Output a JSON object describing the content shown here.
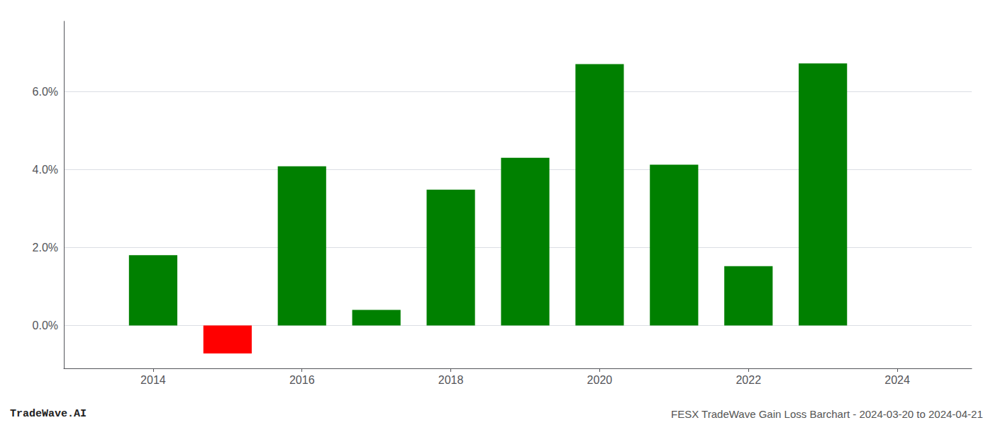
{
  "chart_data": {
    "type": "bar",
    "x": [
      2014,
      2015,
      2016,
      2017,
      2018,
      2019,
      2020,
      2021,
      2022,
      2023
    ],
    "values": [
      1.8,
      -0.72,
      4.08,
      0.4,
      3.48,
      4.3,
      6.7,
      4.12,
      1.52,
      6.72
    ],
    "colors": [
      "#008000",
      "#ff0000",
      "#008000",
      "#008000",
      "#008000",
      "#008000",
      "#008000",
      "#008000",
      "#008000",
      "#008000"
    ],
    "xlim": [
      2012.8,
      2025.0
    ],
    "xticks": [
      2014,
      2016,
      2018,
      2020,
      2022,
      2024
    ],
    "ylim": [
      -1.1,
      7.8
    ],
    "yticks": [
      {
        "value": 0.0,
        "label": "0.0%"
      },
      {
        "value": 2.0,
        "label": "2.0%"
      },
      {
        "value": 4.0,
        "label": "4.0%"
      },
      {
        "value": 6.0,
        "label": "6.0%"
      }
    ],
    "grid": true,
    "annotations": [
      "TradeWave.AI",
      "FESX TradeWave Gain Loss Barchart - 2024-03-20 to 2024-04-21"
    ]
  }
}
